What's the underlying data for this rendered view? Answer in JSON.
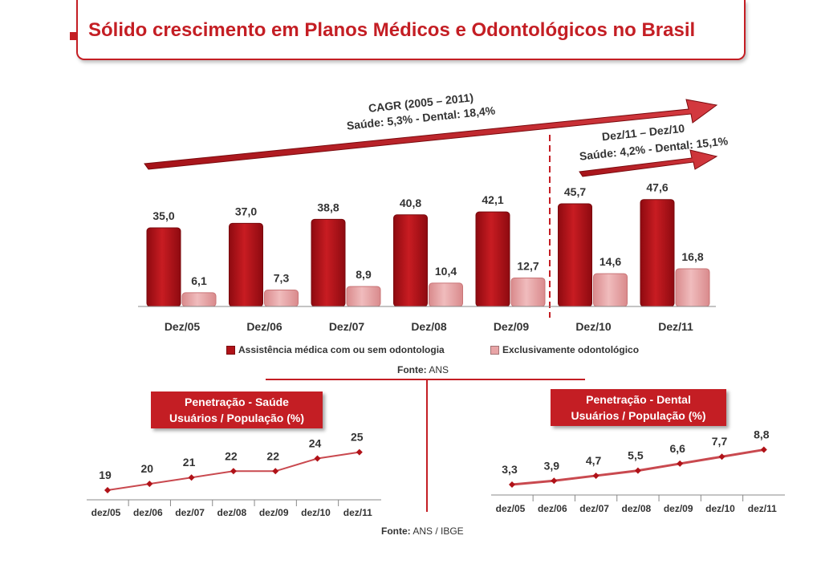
{
  "title": "Sólido crescimento em Planos Médicos e Odontológicos no Brasil",
  "colors": {
    "accent": "#c41e24",
    "series_medical": "#b01218",
    "series_dental": "#e8a4a6",
    "line": "#c9494f"
  },
  "annotations": {
    "cagr_title": "CAGR (2005 – 2011)",
    "cagr_values": "Saúde:  5,3% - Dental: 18,4%",
    "yoy_title": "Dez/11 – Dez/10",
    "yoy_values": "Saúde:  4,2% - Dental:  15,1%"
  },
  "legend": {
    "medical": "Assistência médica com ou sem odontologia",
    "dental": "Exclusivamente odontológico"
  },
  "sources": {
    "main_label": "Fonte:",
    "main_value": " ANS",
    "bottom_label": "Fonte:",
    "bottom_value": " ANS / IBGE"
  },
  "penetration": {
    "health_title_line1": "Penetração - Saúde",
    "health_title_line2": "Usuários / População (%)",
    "dental_title_line1": "Penetração - Dental",
    "dental_title_line2": "Usuários / População (%)"
  },
  "chart_data": [
    {
      "type": "bar",
      "categories": [
        "Dez/05",
        "Dez/06",
        "Dez/07",
        "Dez/08",
        "Dez/09",
        "Dez/10",
        "Dez/11"
      ],
      "series": [
        {
          "name": "Assistência médica com ou sem odontologia",
          "values": [
            35.0,
            37.0,
            38.8,
            40.8,
            42.1,
            45.7,
            47.6
          ],
          "labels": [
            "35,0",
            "37,0",
            "38,8",
            "40,8",
            "42,1",
            "45,7",
            "47,6"
          ]
        },
        {
          "name": "Exclusivamente odontológico",
          "values": [
            6.1,
            7.3,
            8.9,
            10.4,
            12.7,
            14.6,
            16.8
          ],
          "labels": [
            "6,1",
            "7,3",
            "8,9",
            "10,4",
            "12,7",
            "14,6",
            "16,8"
          ]
        }
      ],
      "title": "",
      "xlabel": "",
      "ylabel": "",
      "legend": "bottom",
      "grid": false
    },
    {
      "type": "line",
      "categories": [
        "dez/05",
        "dez/06",
        "dez/07",
        "dez/08",
        "dez/09",
        "dez/10",
        "dez/11"
      ],
      "series": [
        {
          "values": [
            19,
            20,
            21,
            22,
            22,
            24,
            25
          ],
          "labels": [
            "19",
            "20",
            "21",
            "22",
            "22",
            "24",
            "25"
          ]
        }
      ],
      "title": "Penetração - Saúde Usuários / População (%)",
      "grid": false
    },
    {
      "type": "line",
      "categories": [
        "dez/05",
        "dez/06",
        "dez/07",
        "dez/08",
        "dez/09",
        "dez/10",
        "dez/11"
      ],
      "series": [
        {
          "values": [
            3.3,
            3.9,
            4.7,
            5.5,
            6.6,
            7.7,
            8.8
          ],
          "labels": [
            "3,3",
            "3,9",
            "4,7",
            "5,5",
            "6,6",
            "7,7",
            "8,8"
          ]
        }
      ],
      "title": "Penetração - Dental Usuários / População (%)",
      "grid": false
    }
  ]
}
